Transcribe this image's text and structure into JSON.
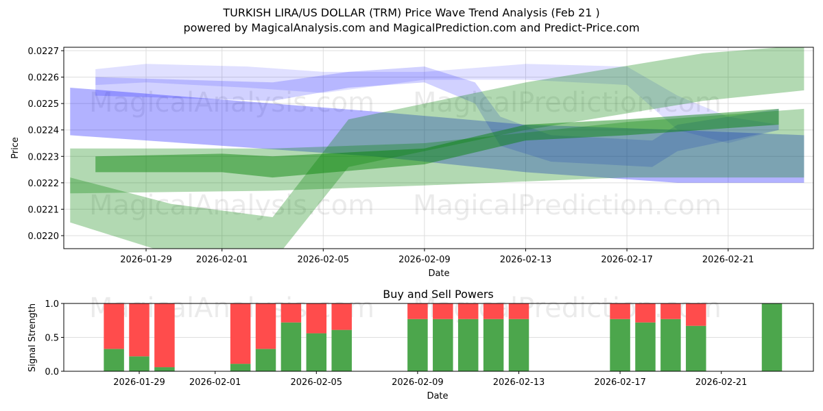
{
  "header": {
    "title": "TURKISH LIRA/US DOLLAR (TRM) Price Wave Trend Analysis (Feb 21 )",
    "subtitle": "powered by MagicalAnalysis.com and MagicalPrediction.com and Predict-Price.com"
  },
  "watermarks": [
    "MagicalAnalysis.com",
    "MagicalPrediction.com"
  ],
  "colors": {
    "blue_band": "#0000ff",
    "green_band": "#008000",
    "buy": "#4ca64c",
    "sell": "#ff4c4c",
    "grid": "#dddddd"
  },
  "chart_data": [
    {
      "type": "area",
      "title": "TURKISH LIRA/US DOLLAR (TRM) Price Wave Trend Analysis (Feb 21 )",
      "xlabel": "Date",
      "ylabel": "Price",
      "ylim": [
        0.02195,
        0.02272
      ],
      "y_ticks": [
        "0.0220",
        "0.0221",
        "0.0222",
        "0.0223",
        "0.0224",
        "0.0225",
        "0.0226",
        "0.0227"
      ],
      "x_ticks": [
        "2026-01-29",
        "2026-02-01",
        "2026-02-05",
        "2026-02-09",
        "2026-02-13",
        "2026-02-17",
        "2026-02-21"
      ],
      "grid": true,
      "series": [
        {
          "name": "blue-wave-1",
          "color": "blue",
          "opacity": 0.3,
          "x": [
            "2026-01-26",
            "2026-02-07",
            "2026-02-13",
            "2026-02-19",
            "2026-02-24"
          ],
          "upper": [
            0.02256,
            0.02247,
            0.02242,
            0.0224,
            0.02238
          ],
          "lower": [
            0.02238,
            0.0223,
            0.02224,
            0.0222,
            0.0222
          ]
        },
        {
          "name": "blue-wave-2",
          "color": "blue",
          "opacity": 0.12,
          "x": [
            "2026-01-27",
            "2026-01-29",
            "2026-02-02",
            "2026-02-05",
            "2026-02-09",
            "2026-02-13",
            "2026-02-17",
            "2026-02-19",
            "2026-02-21",
            "2026-02-23"
          ],
          "upper": [
            0.02263,
            0.02265,
            0.02264,
            0.02262,
            0.02262,
            0.02265,
            0.02264,
            0.02253,
            0.02245,
            0.02242
          ],
          "lower": [
            0.02257,
            0.02258,
            0.02256,
            0.02254,
            0.02259,
            0.02259,
            0.02257,
            0.0224,
            0.02235,
            0.0224
          ]
        },
        {
          "name": "blue-wave-3",
          "color": "blue",
          "opacity": 0.18,
          "x": [
            "2026-01-27",
            "2026-02-03",
            "2026-02-06",
            "2026-02-09",
            "2026-02-11",
            "2026-02-12",
            "2026-02-14",
            "2026-02-18",
            "2026-02-19",
            "2026-02-23"
          ],
          "upper": [
            0.0226,
            0.02258,
            0.02262,
            0.02264,
            0.02258,
            0.02245,
            0.02238,
            0.02236,
            0.02242,
            0.02248
          ],
          "lower": [
            0.02253,
            0.02251,
            0.02256,
            0.02258,
            0.0225,
            0.02234,
            0.02228,
            0.02226,
            0.02232,
            0.0224
          ]
        },
        {
          "name": "green-wave-1",
          "color": "green",
          "opacity": 0.3,
          "x": [
            "2026-01-26",
            "2026-02-03",
            "2026-02-09",
            "2026-02-17",
            "2026-02-24"
          ],
          "upper": [
            0.02233,
            0.02233,
            0.02235,
            0.02243,
            0.02248
          ],
          "lower": [
            0.02216,
            0.02217,
            0.02219,
            0.02222,
            0.02222
          ]
        },
        {
          "name": "green-wave-2",
          "color": "green",
          "opacity": 0.3,
          "x": [
            "2026-01-26",
            "2026-01-30",
            "2026-02-03",
            "2026-02-06",
            "2026-02-13",
            "2026-02-20",
            "2026-02-24"
          ],
          "upper": [
            0.02222,
            0.02212,
            0.02207,
            0.02244,
            0.02258,
            0.02269,
            0.02272
          ],
          "lower": [
            0.02205,
            0.02193,
            0.0219,
            0.02226,
            0.0224,
            0.02251,
            0.02255
          ]
        },
        {
          "name": "green-wave-3",
          "color": "green",
          "opacity": 0.45,
          "x": [
            "2026-01-27",
            "2026-02-01",
            "2026-02-03",
            "2026-02-09",
            "2026-02-13",
            "2026-02-17",
            "2026-02-23"
          ],
          "upper": [
            0.0223,
            0.02231,
            0.0223,
            0.02233,
            0.02242,
            0.02244,
            0.02248
          ],
          "lower": [
            0.02224,
            0.02224,
            0.02222,
            0.02227,
            0.02236,
            0.02238,
            0.02242
          ]
        }
      ]
    },
    {
      "type": "bar",
      "title": "Buy and Sell Powers",
      "xlabel": "Date",
      "ylabel": "Signal Strength",
      "ylim": [
        0.0,
        1.0
      ],
      "y_ticks": [
        "0.0",
        "0.5",
        "1.0"
      ],
      "x_ticks": [
        "2026-01-29",
        "2026-02-01",
        "2026-02-05",
        "2026-02-09",
        "2026-02-13",
        "2026-02-17",
        "2026-02-21"
      ],
      "categories": [
        "2026-01-28",
        "2026-01-29",
        "2026-01-30",
        "2026-02-02",
        "2026-02-03",
        "2026-02-04",
        "2026-02-05",
        "2026-02-06",
        "2026-02-09",
        "2026-02-10",
        "2026-02-11",
        "2026-02-12",
        "2026-02-13",
        "2026-02-17",
        "2026-02-18",
        "2026-02-19",
        "2026-02-20",
        "2026-02-23"
      ],
      "series": [
        {
          "name": "Buy",
          "color": "green",
          "values": [
            0.33,
            0.22,
            0.06,
            0.11,
            0.33,
            0.72,
            0.56,
            0.61,
            0.77,
            0.77,
            0.77,
            0.77,
            0.77,
            0.77,
            0.72,
            0.77,
            0.67,
            1.0
          ]
        },
        {
          "name": "Sell",
          "color": "red",
          "values": [
            0.67,
            0.78,
            0.94,
            0.89,
            0.67,
            0.28,
            0.44,
            0.39,
            0.23,
            0.23,
            0.23,
            0.23,
            0.23,
            0.23,
            0.28,
            0.23,
            0.33,
            0.0
          ]
        }
      ]
    }
  ]
}
